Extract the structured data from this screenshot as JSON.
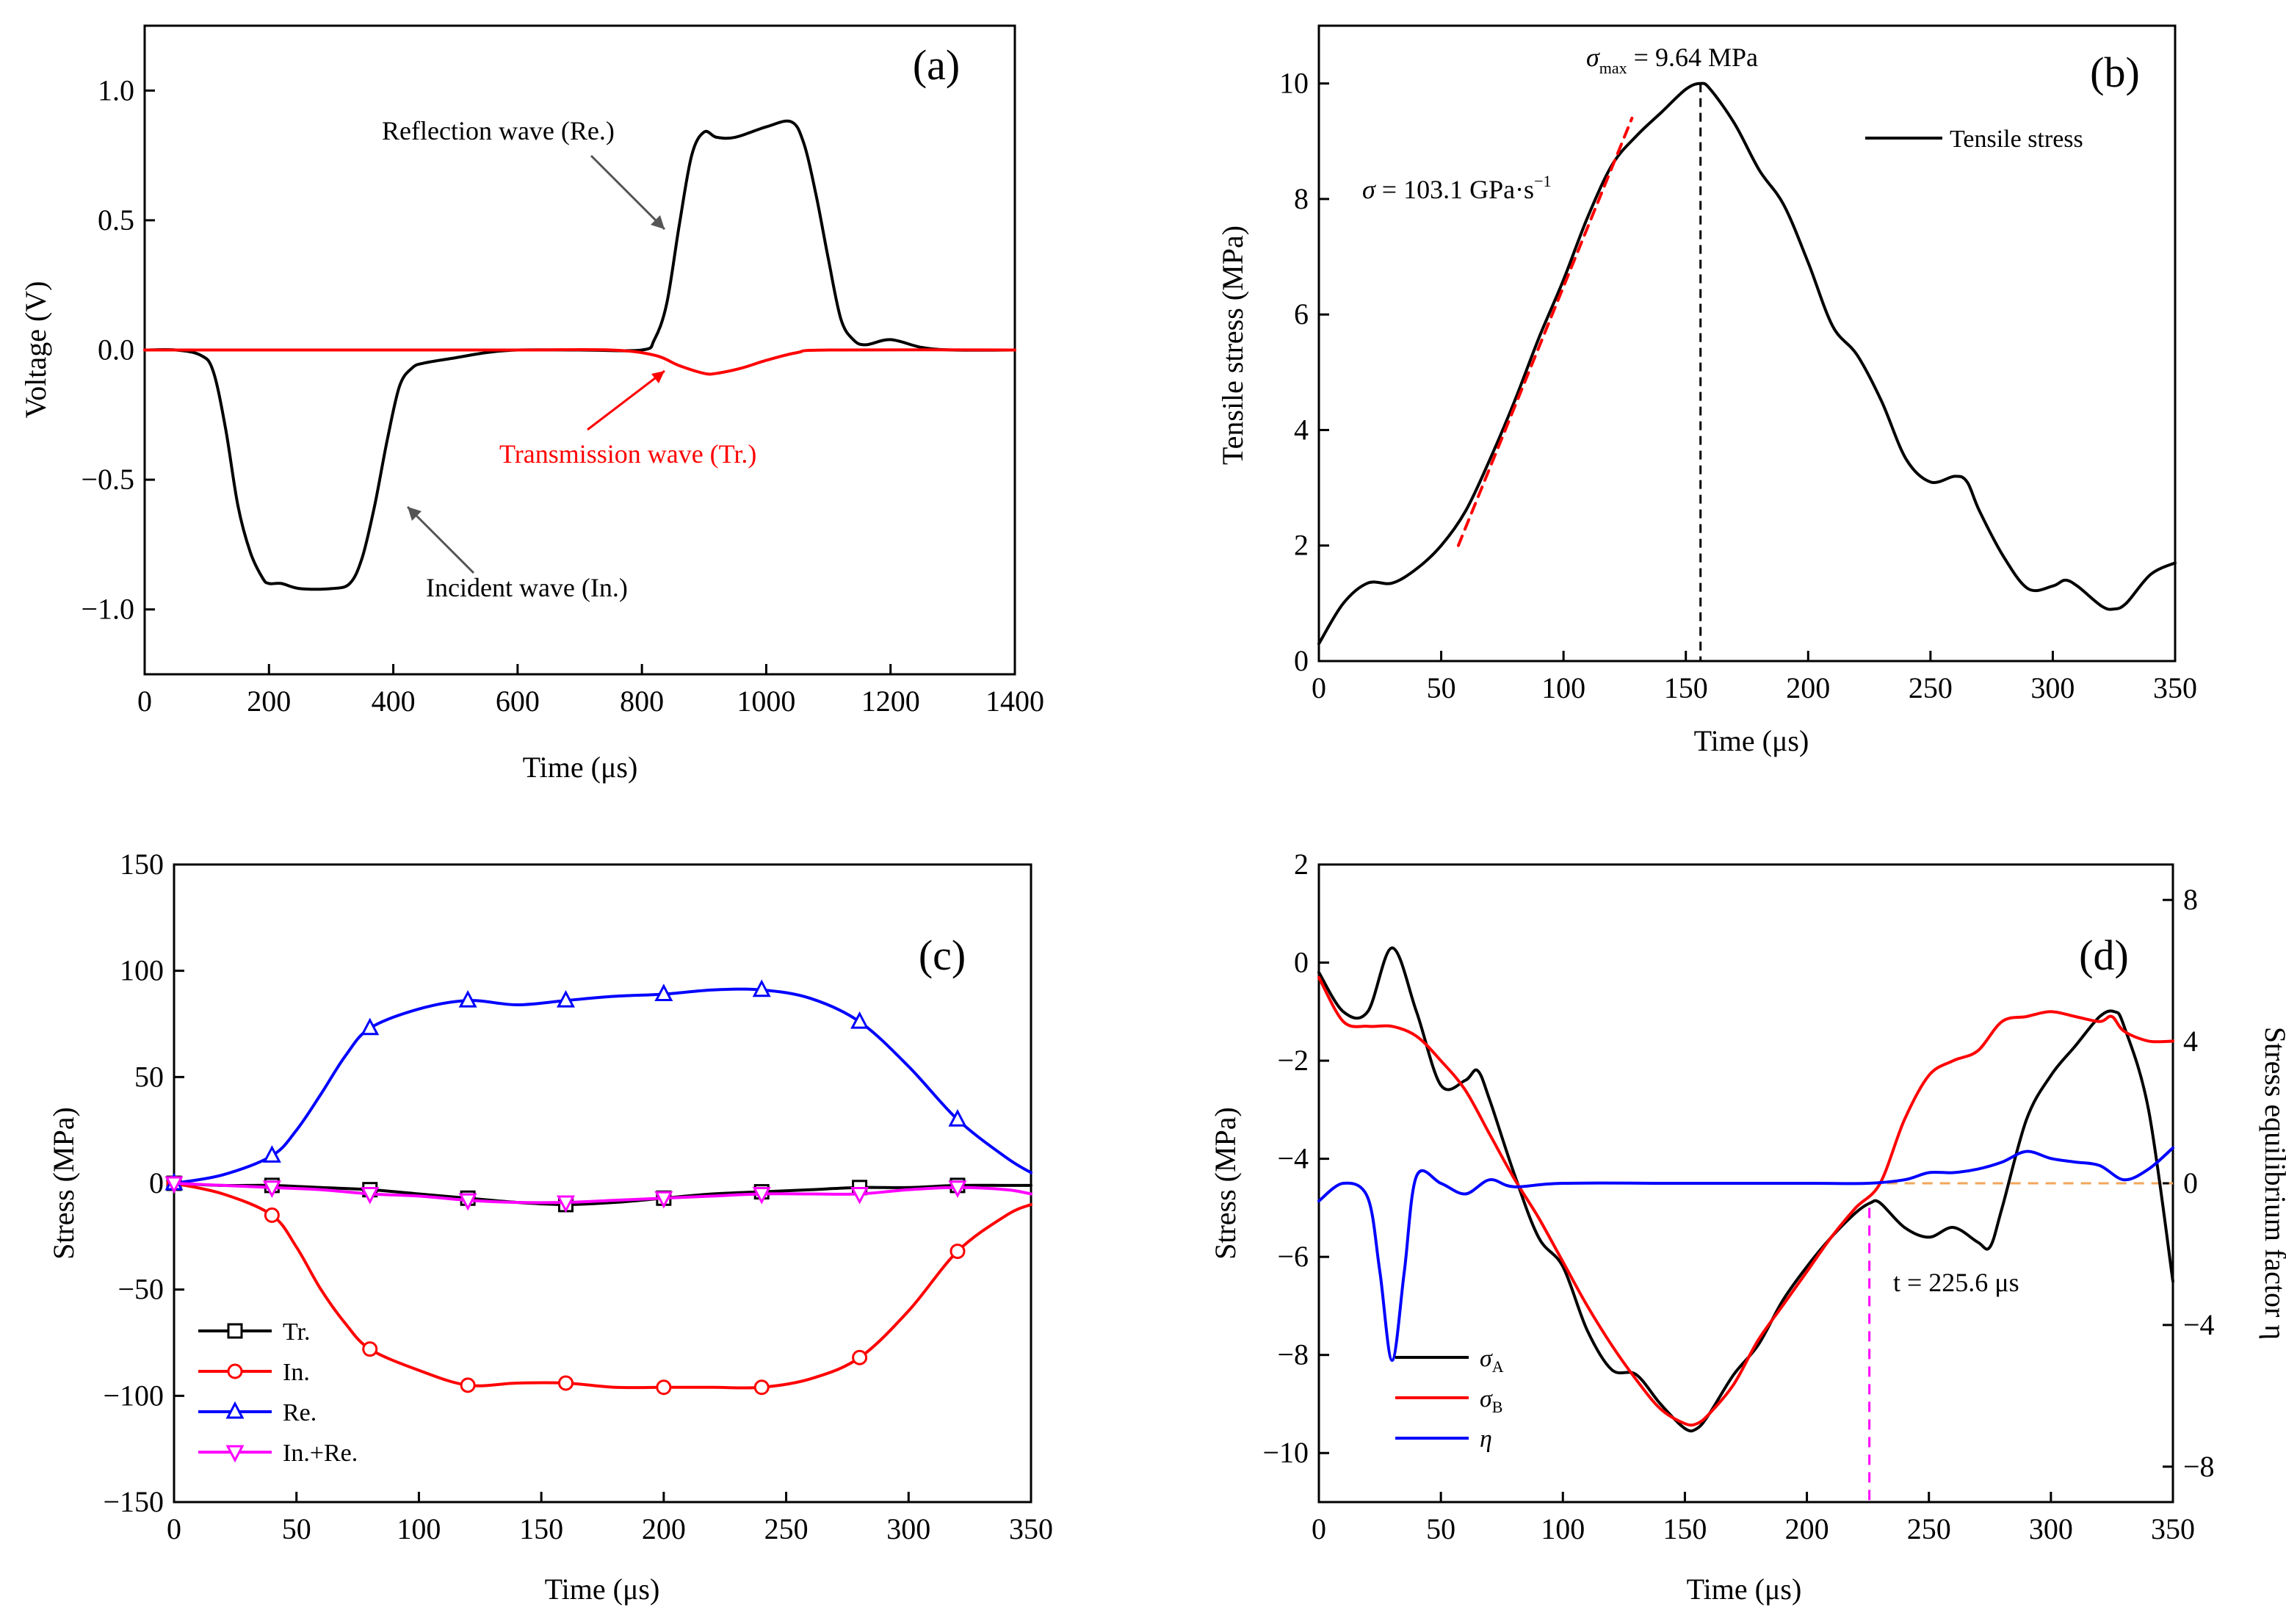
{
  "figure": {
    "panels": [
      {
        "id": "a",
        "label": "(a)"
      },
      {
        "id": "b",
        "label": "(b)"
      },
      {
        "id": "c",
        "label": "(c)"
      },
      {
        "id": "d",
        "label": "(d)"
      }
    ]
  },
  "chart_data": [
    {
      "panel": "a",
      "type": "line",
      "xlabel": "Time (μs)",
      "ylabel": "Voltage (V)",
      "xlim": [
        0,
        1400
      ],
      "ylim": [
        -1.25,
        1.25
      ],
      "xticks": [
        0,
        200,
        400,
        600,
        800,
        1000,
        1200,
        1400
      ],
      "yticks": [
        -1.0,
        -0.5,
        0.0,
        0.5,
        1.0
      ],
      "ytick_labels": [
        "−1.0",
        "−0.5",
        "0.0",
        "0.5",
        "1.0"
      ],
      "series": [
        {
          "color": "#000000",
          "x": [
            0,
            50,
            90,
            110,
            130,
            150,
            170,
            190,
            200,
            220,
            250,
            300,
            330,
            350,
            370,
            390,
            410,
            430,
            450,
            500,
            550,
            600,
            700,
            800,
            820,
            840,
            860,
            880,
            900,
            920,
            950,
            1000,
            1040,
            1060,
            1080,
            1100,
            1120,
            1140,
            1160,
            1200,
            1250,
            1300,
            1400
          ],
          "y": [
            0.0,
            0.0,
            -0.02,
            -0.08,
            -0.3,
            -0.6,
            -0.78,
            -0.88,
            -0.9,
            -0.9,
            -0.92,
            -0.92,
            -0.9,
            -0.8,
            -0.6,
            -0.35,
            -0.14,
            -0.07,
            -0.05,
            -0.03,
            -0.01,
            0.0,
            0.0,
            0.0,
            0.04,
            0.18,
            0.48,
            0.75,
            0.84,
            0.82,
            0.82,
            0.86,
            0.88,
            0.8,
            0.6,
            0.35,
            0.12,
            0.04,
            0.02,
            0.04,
            0.01,
            0.0,
            0.0
          ]
        },
        {
          "color": "#ff0000",
          "x": [
            0,
            200,
            400,
            600,
            750,
            820,
            860,
            900,
            920,
            960,
            1000,
            1050,
            1100,
            1400
          ],
          "y": [
            0.0,
            0.0,
            0.0,
            0.0,
            0.0,
            -0.02,
            -0.06,
            -0.09,
            -0.09,
            -0.07,
            -0.04,
            -0.01,
            0.0,
            0.0
          ]
        }
      ],
      "annotations": [
        {
          "text": "Reflection wave (Re.)"
        },
        {
          "text": "Transmission wave (Tr.)"
        },
        {
          "text": "Incident wave (In.)"
        }
      ]
    },
    {
      "panel": "b",
      "type": "line",
      "xlabel": "Time (μs)",
      "ylabel": "Tensile stress (MPa)",
      "xlim": [
        0,
        350
      ],
      "ylim": [
        0,
        11
      ],
      "xticks": [
        0,
        50,
        100,
        150,
        200,
        250,
        300,
        350
      ],
      "yticks": [
        0,
        2,
        4,
        6,
        8,
        10
      ],
      "series": [
        {
          "name": "Tensile stress",
          "color": "#000000",
          "x": [
            0,
            10,
            20,
            30,
            40,
            50,
            60,
            70,
            80,
            90,
            100,
            110,
            120,
            130,
            140,
            150,
            156,
            160,
            170,
            180,
            190,
            200,
            210,
            220,
            230,
            240,
            250,
            260,
            265,
            270,
            280,
            290,
            300,
            305,
            310,
            320,
            325,
            330,
            340,
            350
          ],
          "y": [
            0.3,
            1.0,
            1.35,
            1.35,
            1.6,
            2.0,
            2.6,
            3.5,
            4.5,
            5.6,
            6.6,
            7.7,
            8.6,
            9.1,
            9.5,
            9.9,
            10.0,
            9.9,
            9.3,
            8.5,
            7.9,
            6.9,
            5.8,
            5.3,
            4.5,
            3.5,
            3.1,
            3.2,
            3.1,
            2.6,
            1.8,
            1.25,
            1.3,
            1.4,
            1.3,
            0.95,
            0.9,
            1.0,
            1.5,
            1.7
          ]
        },
        {
          "name": "",
          "color": "#ff0000",
          "dashed": true,
          "x": [
            57,
            128
          ],
          "y": [
            2.0,
            9.4
          ]
        }
      ],
      "legend": [
        "Tensile stress"
      ],
      "legend_position": "top-right",
      "vline": {
        "x": 156,
        "style": "dashed"
      },
      "annotations": [
        {
          "text_main": "σ",
          "text_sub": "max",
          "text_rest": " = 9.64 MPa"
        },
        {
          "text_main": "σ",
          "text_rest": " = 103.1 GPa·s",
          "text_sup": "−1"
        }
      ]
    },
    {
      "panel": "c",
      "type": "line",
      "xlabel": "Time (μs)",
      "ylabel": "Stress (MPa)",
      "xlim": [
        0,
        350
      ],
      "ylim": [
        -150,
        150
      ],
      "xticks": [
        0,
        50,
        100,
        150,
        200,
        250,
        300,
        350
      ],
      "yticks": [
        -150,
        -100,
        -50,
        0,
        50,
        100,
        150
      ],
      "ytick_labels": [
        "−150",
        "−100",
        "−50",
        "0",
        "50",
        "100",
        "150"
      ],
      "marker_x": [
        0,
        40,
        80,
        120,
        160,
        200,
        240,
        280,
        320
      ],
      "series": [
        {
          "name": "Tr.",
          "color": "#000000",
          "marker": "square",
          "x": [
            0,
            20,
            40,
            60,
            80,
            100,
            120,
            140,
            160,
            180,
            200,
            220,
            240,
            260,
            280,
            300,
            320,
            340,
            350
          ],
          "y": [
            0,
            -1,
            -1,
            -2,
            -3,
            -5,
            -7,
            -9,
            -10,
            -9,
            -7,
            -5,
            -4,
            -3,
            -2,
            -2,
            -1,
            -1,
            -1
          ]
        },
        {
          "name": "In.",
          "color": "#ff0000",
          "marker": "circle",
          "x": [
            0,
            20,
            40,
            50,
            60,
            70,
            80,
            100,
            120,
            140,
            160,
            180,
            200,
            220,
            240,
            260,
            280,
            300,
            320,
            340,
            350
          ],
          "y": [
            0,
            -5,
            -15,
            -30,
            -50,
            -66,
            -78,
            -88,
            -95,
            -94,
            -94,
            -96,
            -96,
            -96,
            -96,
            -92,
            -82,
            -60,
            -32,
            -15,
            -10
          ]
        },
        {
          "name": "Re.",
          "color": "#0000ff",
          "marker": "triangle-up",
          "x": [
            0,
            20,
            40,
            50,
            60,
            70,
            80,
            100,
            120,
            140,
            160,
            180,
            200,
            220,
            240,
            260,
            280,
            300,
            320,
            340,
            350
          ],
          "y": [
            0,
            4,
            13,
            25,
            42,
            60,
            73,
            82,
            86,
            84,
            86,
            88,
            89,
            91,
            91,
            87,
            76,
            55,
            30,
            12,
            5
          ]
        },
        {
          "name": "In.+Re.",
          "color": "#ff00ff",
          "marker": "triangle-down",
          "x": [
            0,
            20,
            40,
            60,
            80,
            100,
            120,
            140,
            160,
            180,
            200,
            220,
            240,
            260,
            280,
            300,
            320,
            340,
            350
          ],
          "y": [
            0,
            -1,
            -2,
            -3,
            -5,
            -6,
            -8,
            -9,
            -9,
            -8,
            -7,
            -6,
            -5,
            -5,
            -5,
            -3,
            -2,
            -3,
            -5
          ]
        }
      ],
      "legend": [
        "Tr.",
        "In.",
        "Re.",
        "In.+Re."
      ],
      "legend_position": "bottom-left"
    },
    {
      "panel": "d",
      "type": "line",
      "xlabel": "Time (μs)",
      "ylabel": "Stress (MPa)",
      "ylabel_right": "Stress equilibrium factor η",
      "xlim": [
        0,
        350
      ],
      "ylim": [
        -11,
        2
      ],
      "ylim_right": [
        -9,
        9
      ],
      "xticks": [
        0,
        50,
        100,
        150,
        200,
        250,
        300,
        350
      ],
      "yticks": [
        -10,
        -8,
        -6,
        -4,
        -2,
        0,
        2
      ],
      "ytick_labels": [
        "−10",
        "−8",
        "−6",
        "−4",
        "−2",
        "0",
        "2"
      ],
      "yticks_right": [
        -8,
        -4,
        0,
        4,
        8
      ],
      "ytick_labels_right": [
        "−8",
        "−4",
        "0",
        "4",
        "8"
      ],
      "series": [
        {
          "name": "σA",
          "name_main": "σ",
          "name_sub": "A",
          "color": "#000000",
          "axis": "left",
          "x": [
            0,
            10,
            20,
            30,
            40,
            50,
            60,
            65,
            70,
            80,
            90,
            100,
            110,
            120,
            130,
            140,
            150,
            155,
            160,
            170,
            180,
            190,
            200,
            210,
            220,
            226,
            230,
            240,
            250,
            260,
            270,
            275,
            280,
            290,
            300,
            310,
            320,
            326,
            330,
            340,
            350
          ],
          "y": [
            -0.2,
            -1.0,
            -1.0,
            0.3,
            -1.0,
            -2.5,
            -2.4,
            -2.2,
            -2.8,
            -4.3,
            -5.6,
            -6.2,
            -7.5,
            -8.3,
            -8.4,
            -9.0,
            -9.5,
            -9.5,
            -9.2,
            -8.4,
            -7.8,
            -6.9,
            -6.2,
            -5.6,
            -5.1,
            -4.9,
            -4.9,
            -5.4,
            -5.6,
            -5.4,
            -5.7,
            -5.8,
            -5.0,
            -3.2,
            -2.3,
            -1.7,
            -1.1,
            -1.0,
            -1.3,
            -3.0,
            -6.5
          ]
        },
        {
          "name": "σB",
          "name_main": "σ",
          "name_sub": "B",
          "color": "#ff0000",
          "axis": "left",
          "x": [
            0,
            10,
            20,
            30,
            40,
            50,
            60,
            70,
            80,
            90,
            100,
            110,
            120,
            130,
            140,
            150,
            155,
            160,
            170,
            180,
            190,
            200,
            210,
            220,
            230,
            240,
            250,
            260,
            270,
            280,
            290,
            300,
            310,
            320,
            325,
            330,
            340,
            350
          ],
          "y": [
            -0.3,
            -1.2,
            -1.3,
            -1.3,
            -1.5,
            -2.0,
            -2.6,
            -3.5,
            -4.4,
            -5.2,
            -6.1,
            -7.0,
            -7.8,
            -8.5,
            -9.1,
            -9.4,
            -9.4,
            -9.2,
            -8.6,
            -7.7,
            -7.0,
            -6.3,
            -5.6,
            -5.0,
            -4.5,
            -3.2,
            -2.3,
            -2.0,
            -1.8,
            -1.2,
            -1.1,
            -1.0,
            -1.1,
            -1.2,
            -1.1,
            -1.4,
            -1.6,
            -1.6
          ]
        },
        {
          "name": "η",
          "color": "#0000ff",
          "axis": "right",
          "x": [
            0,
            10,
            20,
            25,
            30,
            35,
            40,
            50,
            60,
            70,
            80,
            100,
            150,
            200,
            225,
            240,
            250,
            260,
            270,
            280,
            290,
            300,
            310,
            320,
            330,
            340,
            350
          ],
          "y": [
            -0.5,
            0.0,
            -0.4,
            -2.5,
            -5.0,
            -2.5,
            0.2,
            0.0,
            -0.3,
            0.1,
            -0.1,
            0.0,
            0.0,
            0.0,
            0.0,
            0.1,
            0.3,
            0.3,
            0.4,
            0.6,
            0.9,
            0.7,
            0.6,
            0.5,
            0.1,
            0.4,
            1.0
          ]
        }
      ],
      "legend": [
        "σA",
        "σB",
        "η"
      ],
      "legend_position": "bottom-left",
      "guides": {
        "vline_x": 225.6,
        "hline_right_y": 0
      },
      "annotations": [
        {
          "text": "t = 225.6 μs"
        }
      ]
    }
  ]
}
